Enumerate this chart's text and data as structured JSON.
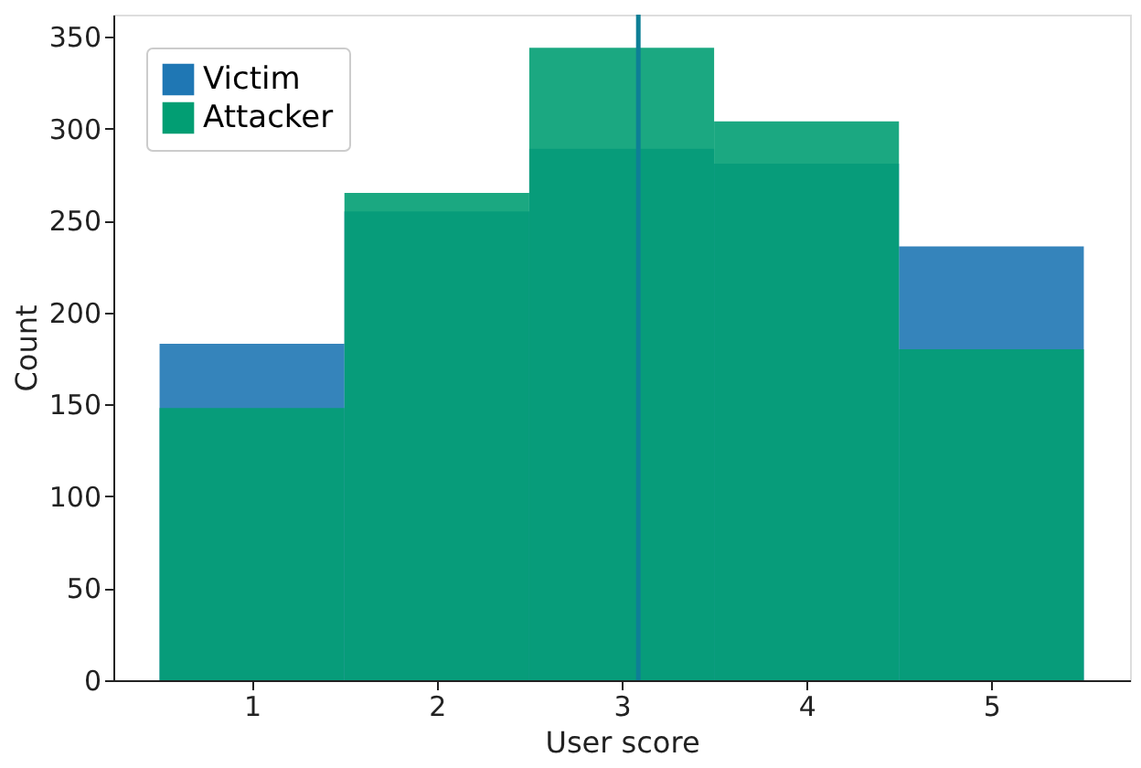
{
  "chart_data": {
    "type": "histogram",
    "xlabel": "User score",
    "ylabel": "Count",
    "bins": [
      0.5,
      1.5,
      2.5,
      3.5,
      4.5,
      5.5
    ],
    "series": [
      {
        "name": "Victim",
        "color": "#1f77b4",
        "values": [
          183,
          255,
          289,
          281,
          236
        ]
      },
      {
        "name": "Attacker",
        "color": "#029e73",
        "values": [
          148,
          265,
          344,
          304,
          180
        ]
      }
    ],
    "xlim": [
      0.25,
      5.75
    ],
    "xticks": [
      1,
      2,
      3,
      4,
      5
    ],
    "ylim": [
      0,
      362
    ],
    "yticks": [
      0,
      50,
      100,
      150,
      200,
      250,
      300,
      350
    ],
    "ref_lines": [
      {
        "axis": "x",
        "value": 3.09,
        "color": "#0e7f96"
      }
    ],
    "legend": "top left",
    "grid": false
  }
}
